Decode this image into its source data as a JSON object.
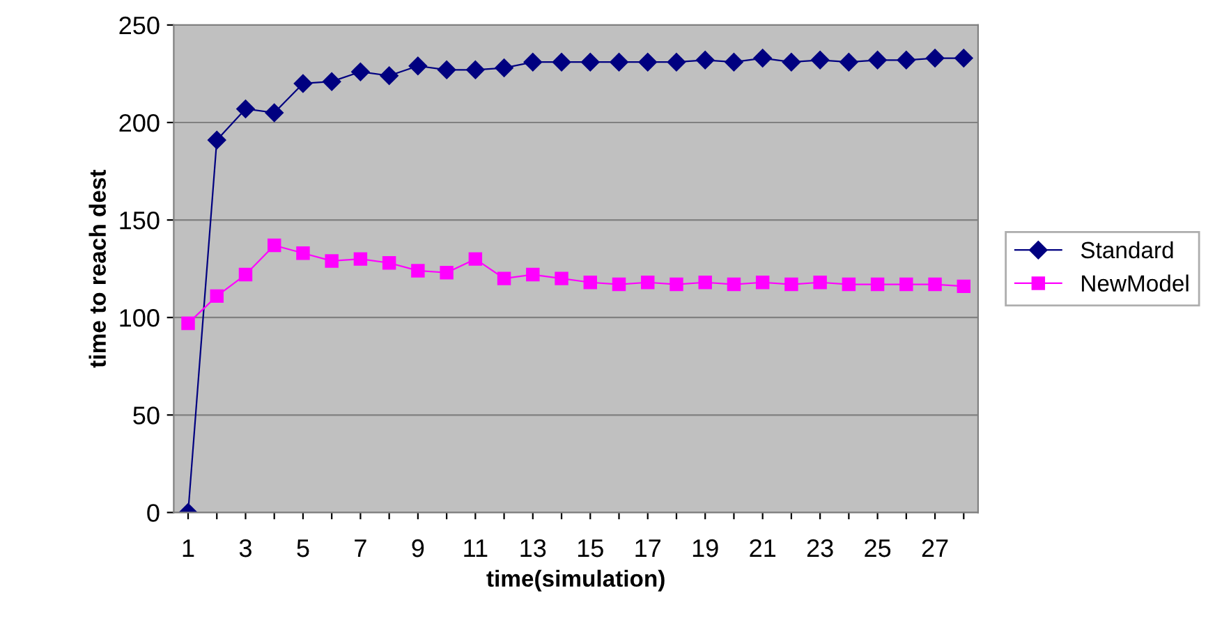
{
  "chart_data": {
    "type": "line",
    "xlabel": "time(simulation)",
    "ylabel": "time to reach dest",
    "categories": [
      "1",
      null,
      "3",
      null,
      "5",
      null,
      "7",
      null,
      "9",
      null,
      "11",
      null,
      "13",
      null,
      "15",
      null,
      "17",
      null,
      "19",
      null,
      "21",
      null,
      "23",
      null,
      "25",
      null,
      "27",
      null
    ],
    "series": [
      {
        "name": "Standard",
        "color": "#000080",
        "marker": "diamond",
        "values": [
          0,
          191,
          207,
          205,
          220,
          221,
          226,
          224,
          229,
          227,
          227,
          228,
          231,
          231,
          231,
          231,
          231,
          231,
          232,
          231,
          233,
          231,
          232,
          231,
          232,
          232,
          233,
          233
        ]
      },
      {
        "name": "NewModel",
        "color": "#ff00ff",
        "marker": "square",
        "values": [
          97,
          111,
          122,
          137,
          133,
          129,
          130,
          128,
          124,
          123,
          130,
          120,
          122,
          120,
          118,
          117,
          118,
          117,
          118,
          117,
          118,
          117,
          118,
          117,
          117,
          117,
          117,
          116
        ]
      }
    ],
    "ylim": [
      0,
      250
    ],
    "yticks": [
      0,
      50,
      100,
      150,
      200,
      250
    ],
    "grid": "y",
    "legend": "right"
  }
}
